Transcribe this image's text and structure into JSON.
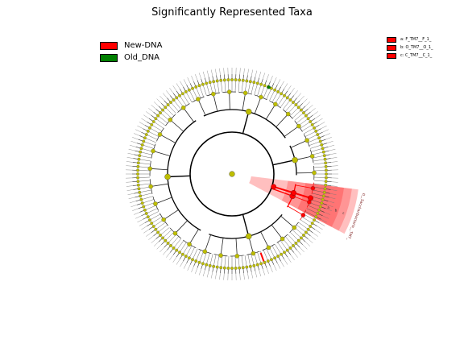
{
  "title": "Significantly Represented Taxa",
  "legend": {
    "items": [
      {
        "label": "New-DNA",
        "color": "#ff0000"
      },
      {
        "label": "Old_DNA",
        "color": "#007f00"
      }
    ]
  },
  "clade_legend": {
    "items": [
      {
        "label": "a: F_TM7__F_1_",
        "color": "#ff0000"
      },
      {
        "label": "b: O_TM7__O_1_",
        "color": "#ff0000"
      },
      {
        "label": "c: C_TM7__C_1_",
        "color": "#ff0000"
      }
    ]
  },
  "highlight": {
    "outer_label": "p__Saccharibacteria__TM7_",
    "inner_letters": [
      "a",
      "b",
      "c"
    ],
    "color": "#ff0000"
  },
  "node_color": "#bdbd00"
}
